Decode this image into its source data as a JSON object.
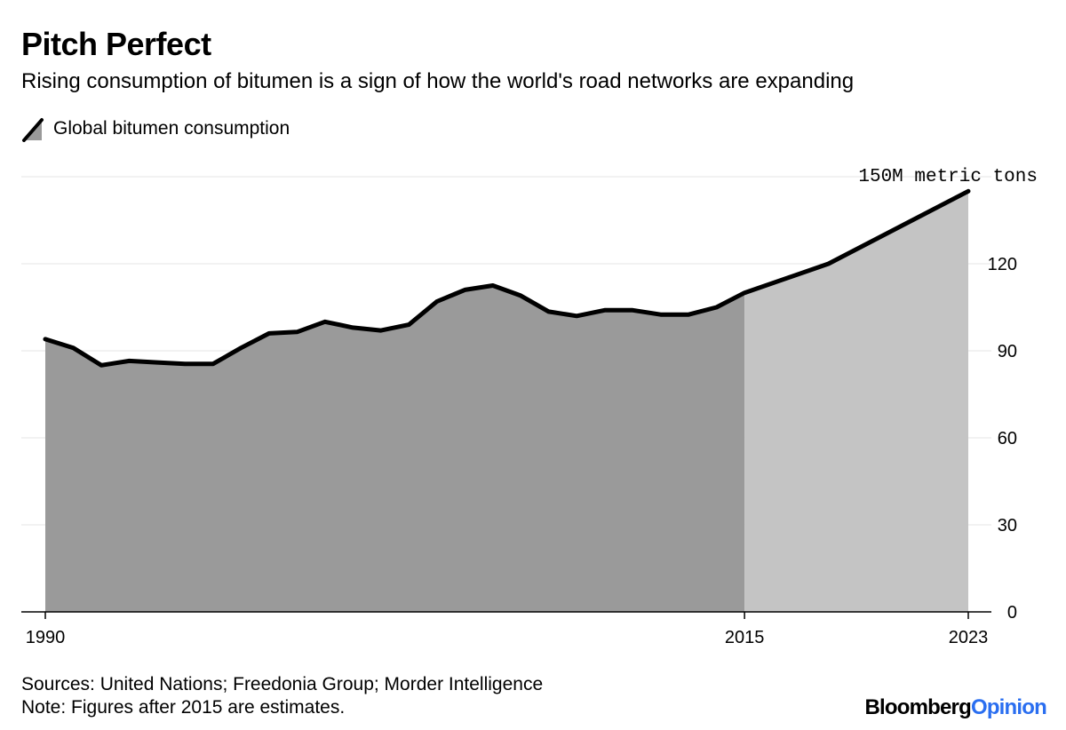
{
  "header": {
    "title": "Pitch Perfect",
    "subtitle": "Rising consumption of bitumen is a sign of how the world's road networks are expanding"
  },
  "legend": {
    "label": "Global bitumen consumption"
  },
  "footer": {
    "sources": "Sources: United Nations; Freedonia Group; Morder Intelligence",
    "note": "Note: Figures after 2015 are estimates.",
    "brand_primary": "Bloomberg",
    "brand_secondary": "Opinion"
  },
  "colors": {
    "historical_fill": "#9a9a9a",
    "estimate_fill": "#c4c4c4",
    "line": "#000000",
    "grid": "#e6e6e6",
    "brand_accent": "#2a6ef0"
  },
  "chart_data": {
    "type": "area",
    "title": "Pitch Perfect",
    "subtitle": "Rising consumption of bitumen is a sign of how the world's road networks are expanding",
    "unit_label": "150M metric tons",
    "series": [
      {
        "name": "Global bitumen consumption",
        "x": [
          1990,
          1991,
          1992,
          1993,
          1994,
          1995,
          1996,
          1997,
          1998,
          1999,
          2000,
          2001,
          2002,
          2003,
          2004,
          2005,
          2006,
          2007,
          2008,
          2009,
          2010,
          2011,
          2012,
          2013,
          2014,
          2015,
          2018,
          2023
        ],
        "values": [
          94,
          91,
          85,
          86.5,
          86,
          85.5,
          85.5,
          91,
          96,
          96.5,
          100,
          98,
          97,
          99,
          107,
          111,
          112.5,
          109,
          103.5,
          102,
          104,
          104,
          102.5,
          102.5,
          105,
          110,
          120,
          145
        ]
      }
    ],
    "estimates_after": 2015,
    "x_ticks": [
      1990,
      2015,
      2023
    ],
    "y_ticks": [
      0,
      30,
      60,
      90,
      120
    ],
    "y_top_label_value": 150,
    "xlim": [
      1990,
      2023
    ],
    "ylim": [
      0,
      150
    ],
    "grid": true,
    "y_axis_side": "right",
    "legend_position": "top-left"
  }
}
